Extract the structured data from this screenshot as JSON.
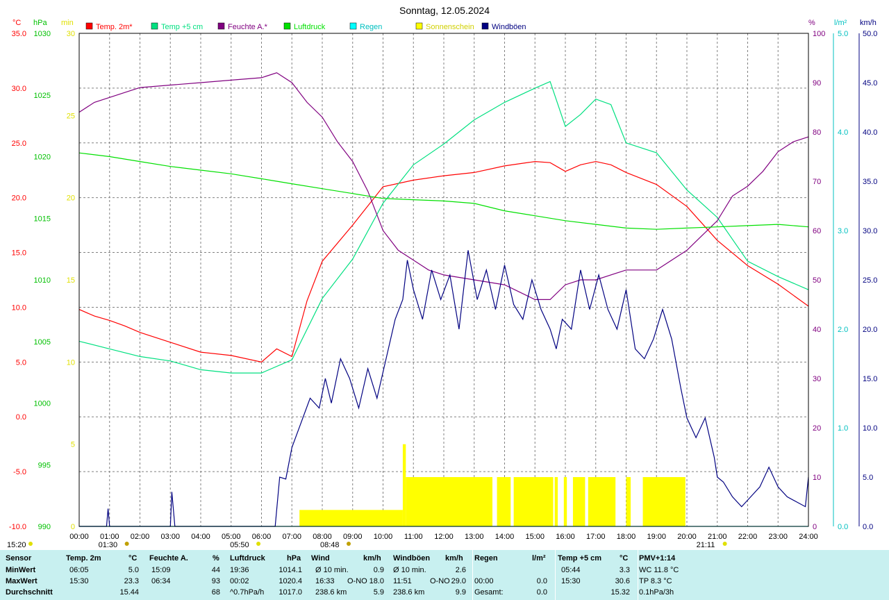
{
  "title": "Sonntag, 12.05.2024",
  "axes": {
    "left_units": [
      "°C",
      "hPa",
      "min"
    ],
    "right_units": [
      "%",
      "l/m²",
      "km/h"
    ],
    "temp_ticks": [
      "35.0",
      "30.0",
      "25.0",
      "20.0",
      "15.0",
      "10.0",
      "5.0",
      "0.0",
      "-5.0",
      "-10.0"
    ],
    "hpa_ticks": [
      "1030",
      "1025",
      "1020",
      "1015",
      "1010",
      "1005",
      "1000",
      "995",
      "990"
    ],
    "min_ticks": [
      "30",
      "25",
      "20",
      "15",
      "10",
      "5",
      "0"
    ],
    "pct_ticks": [
      "100",
      "90",
      "80",
      "70",
      "60",
      "50",
      "40",
      "30",
      "20",
      "10",
      "0"
    ],
    "rain_ticks": [
      "5.0",
      "4.0",
      "3.0",
      "2.0",
      "1.0",
      "0.0"
    ],
    "kmh_ticks": [
      "50.0",
      "45.0",
      "40.0",
      "35.0",
      "30.0",
      "25.0",
      "20.0",
      "15.0",
      "10.0",
      "5.0",
      "0.0"
    ],
    "time_ticks": [
      "00:00",
      "01:00",
      "02:00",
      "03:00",
      "04:00",
      "05:00",
      "06:00",
      "07:00",
      "08:00",
      "09:00",
      "10:00",
      "11:00",
      "12:00",
      "13:00",
      "14:00",
      "15:00",
      "16:00",
      "17:00",
      "18:00",
      "19:00",
      "20:00",
      "21:00",
      "22:00",
      "23:00",
      "24:00"
    ]
  },
  "legend": [
    {
      "label": "Temp. 2m*",
      "color": "#ff0000"
    },
    {
      "label": "Temp +5 cm",
      "color": "#00e080"
    },
    {
      "label": "Feuchte A.*",
      "color": "#800080"
    },
    {
      "label": "Luftdruck",
      "color": "#00e000"
    },
    {
      "label": "Regen",
      "color": "#00ffff"
    },
    {
      "label": "Sonnenschein",
      "color": "#ffff00"
    },
    {
      "label": "Windböen",
      "color": "#000080"
    }
  ],
  "events": {
    "sunrise_sun": "05:50",
    "sunset_sun": "21:11",
    "moonset": "01:30",
    "moonrise": "08:48",
    "left_corner": "15:20"
  },
  "chart_data": {
    "type": "line",
    "title": "Sonntag, 12.05.2024",
    "x_range": [
      "00:00",
      "24:00"
    ],
    "series": [
      {
        "name": "Temp. 2m*",
        "unit": "°C",
        "axis": "temp",
        "range": [
          -10,
          35
        ],
        "x": [
          0,
          0.5,
          1,
          1.5,
          2,
          3,
          4,
          5,
          6,
          6.5,
          7,
          7.5,
          8,
          9,
          10,
          11,
          12,
          13,
          14,
          15,
          15.5,
          16,
          16.5,
          17,
          17.5,
          18,
          19,
          20,
          21,
          22,
          23,
          24
        ],
        "y": [
          9.8,
          9.2,
          8.8,
          8.3,
          7.7,
          6.8,
          5.9,
          5.6,
          5.0,
          6.2,
          5.5,
          10.6,
          14.2,
          17.5,
          21.0,
          21.6,
          22.0,
          22.3,
          22.9,
          23.3,
          23.2,
          22.4,
          23.0,
          23.3,
          23.0,
          22.3,
          21.2,
          19.2,
          16.1,
          13.8,
          12.1,
          10.1
        ]
      },
      {
        "name": "Temp +5 cm",
        "unit": "°C",
        "axis": "temp",
        "range": [
          -10,
          35
        ],
        "x": [
          0,
          1,
          2,
          3,
          4,
          5,
          6,
          7,
          8,
          9,
          10,
          11,
          12,
          13,
          14,
          15,
          15.5,
          16,
          16.5,
          17,
          17.5,
          18,
          19,
          20,
          21,
          22,
          23,
          24
        ],
        "y": [
          6.9,
          6.2,
          5.5,
          5.1,
          4.3,
          4.0,
          4.0,
          5.2,
          10.8,
          14.4,
          19.5,
          23.0,
          24.9,
          27.1,
          28.7,
          30.0,
          30.6,
          26.5,
          27.6,
          29.0,
          28.5,
          25.0,
          24.1,
          20.7,
          18.2,
          14.2,
          12.8,
          11.6
        ]
      },
      {
        "name": "Feuchte A.*",
        "unit": "%",
        "axis": "pct",
        "range": [
          0,
          100
        ],
        "x": [
          0,
          0.5,
          1,
          1.5,
          2,
          3,
          4,
          5,
          6,
          6.5,
          7,
          7.5,
          8,
          8.5,
          9,
          9.5,
          10,
          10.5,
          11,
          11.5,
          12,
          13,
          14,
          15,
          15.5,
          16,
          16.5,
          17,
          18,
          19,
          20,
          20.5,
          21,
          21.5,
          22,
          22.5,
          23,
          23.5,
          24
        ],
        "y": [
          84,
          86,
          87,
          88,
          89,
          89.5,
          90,
          90.5,
          91,
          92,
          90,
          86,
          83,
          78,
          74,
          68,
          60,
          56,
          54,
          52,
          51,
          50,
          49,
          46,
          46,
          49,
          50,
          50,
          52,
          52,
          56,
          59,
          62,
          67,
          69,
          72,
          76,
          78,
          79
        ]
      },
      {
        "name": "Luftdruck",
        "unit": "hPa",
        "axis": "hpa",
        "range": [
          990,
          1030
        ],
        "x": [
          0,
          1,
          2,
          3,
          4,
          5,
          6,
          7,
          8,
          9,
          10,
          11,
          12,
          13,
          14,
          15,
          16,
          17,
          18,
          19,
          20,
          21,
          22,
          23,
          24
        ],
        "y": [
          1020.3,
          1020.0,
          1019.6,
          1019.2,
          1018.9,
          1018.6,
          1018.2,
          1017.8,
          1017.4,
          1017.0,
          1016.6,
          1016.5,
          1016.4,
          1016.2,
          1015.6,
          1015.2,
          1014.8,
          1014.5,
          1014.2,
          1014.1,
          1014.2,
          1014.3,
          1014.4,
          1014.5,
          1014.3
        ]
      },
      {
        "name": "Regen",
        "unit": "l/m²",
        "axis": "rain",
        "range": [
          0,
          5
        ],
        "x": [
          0,
          24
        ],
        "y": [
          0,
          0
        ]
      },
      {
        "name": "Sonnenschein",
        "unit": "min",
        "axis": "min",
        "range": [
          0,
          30
        ],
        "kind": "bars",
        "segments": [
          [
            7.25,
            10.65,
            1.0
          ],
          [
            10.65,
            10.75,
            5.0
          ],
          [
            10.75,
            13.6,
            3.0
          ],
          [
            13.75,
            14.2,
            3.0
          ],
          [
            14.3,
            15.6,
            3.0
          ],
          [
            15.65,
            15.75,
            3.0
          ],
          [
            15.95,
            16.05,
            3.0
          ],
          [
            16.25,
            16.65,
            3.0
          ],
          [
            16.75,
            17.65,
            3.0
          ],
          [
            18.0,
            18.15,
            3.0
          ],
          [
            18.55,
            19.95,
            3.0
          ]
        ]
      },
      {
        "name": "Windböen",
        "unit": "km/h",
        "axis": "kmh",
        "range": [
          0,
          50
        ],
        "x": [
          0,
          0.9,
          0.95,
          1.0,
          3.0,
          3.05,
          3.15,
          6.45,
          6.6,
          6.8,
          7.0,
          7.3,
          7.6,
          7.9,
          8.1,
          8.3,
          8.6,
          8.9,
          9.2,
          9.5,
          9.8,
          10.1,
          10.4,
          10.65,
          10.8,
          11.0,
          11.3,
          11.6,
          11.9,
          12.2,
          12.5,
          12.8,
          13.1,
          13.4,
          13.7,
          14.0,
          14.3,
          14.6,
          14.9,
          15.2,
          15.5,
          15.7,
          15.9,
          16.2,
          16.5,
          16.8,
          17.1,
          17.4,
          17.7,
          18.0,
          18.3,
          18.6,
          18.9,
          19.2,
          19.5,
          19.8,
          20.0,
          20.3,
          20.6,
          20.9,
          21.0,
          21.2,
          21.5,
          21.8,
          22.1,
          22.4,
          22.7,
          23.0,
          23.3,
          23.6,
          23.9,
          24.0
        ],
        "y": [
          0,
          0,
          1.8,
          0,
          0,
          3.5,
          0,
          0,
          5.0,
          4.8,
          8.0,
          10.5,
          13.0,
          12.0,
          15.0,
          12.5,
          17.0,
          15.0,
          12.0,
          16.0,
          13.0,
          17.0,
          21.0,
          23.0,
          27.0,
          24.0,
          21.0,
          26.0,
          23.0,
          25.5,
          20.0,
          28.0,
          23.0,
          26.0,
          22.0,
          26.5,
          22.5,
          21.0,
          25.0,
          22.0,
          20.0,
          18.0,
          21.0,
          20.0,
          26.0,
          22.0,
          25.5,
          22.0,
          20.0,
          24.0,
          18.0,
          17.0,
          19.0,
          22.0,
          19.0,
          14.0,
          11.0,
          9.0,
          11.0,
          7.0,
          5.0,
          4.5,
          3.0,
          2.0,
          3.0,
          4.0,
          6.0,
          4.0,
          3.0,
          2.5,
          2.0,
          5.0
        ]
      }
    ]
  },
  "stats": {
    "headers": [
      "Sensor",
      "Temp. 2m",
      "°C",
      "Feuchte A.",
      "%",
      "Luftdruck",
      "hPa",
      "Wind",
      "km/h",
      "Windböen",
      "km/h",
      "Regen",
      "l/m²",
      "Temp +5 cm",
      "°C",
      "PMV+1:14"
    ],
    "row_labels": [
      "MinWert",
      "MaxWert",
      "Durchschnitt"
    ],
    "temp2m": [
      [
        "06:05",
        "5.0"
      ],
      [
        "15:30",
        "23.3"
      ],
      [
        "",
        "15.44"
      ]
    ],
    "feuchte": [
      [
        "15:09",
        "44"
      ],
      [
        "06:34",
        "93"
      ],
      [
        "",
        "68"
      ]
    ],
    "luftdruck": [
      [
        "19:36",
        "1014.1"
      ],
      [
        "00:02",
        "1020.4"
      ],
      [
        "^0.7hPa/h",
        "1017.0"
      ]
    ],
    "wind": [
      [
        "Ø 10 min.",
        "",
        "0.9"
      ],
      [
        "16:33",
        "O-NO",
        "18.0"
      ],
      [
        "238.6 km",
        "",
        "5.9"
      ]
    ],
    "windboen": [
      [
        "Ø 10 min.",
        "",
        "2.6"
      ],
      [
        "11:51",
        "O-NO",
        "29.0"
      ],
      [
        "238.6 km",
        "",
        "9.9"
      ]
    ],
    "regen": [
      [
        "",
        ""
      ],
      [
        "00:00",
        "0.0"
      ],
      [
        "Gesamt:",
        "0.0"
      ]
    ],
    "temp5cm": [
      [
        "05:44",
        "3.3"
      ],
      [
        "15:30",
        "30.6"
      ],
      [
        "",
        "15.32"
      ]
    ],
    "pmv": [
      "WC 11.8 °C",
      "TP 8.3 °C",
      "0.1hPa/3h"
    ]
  }
}
